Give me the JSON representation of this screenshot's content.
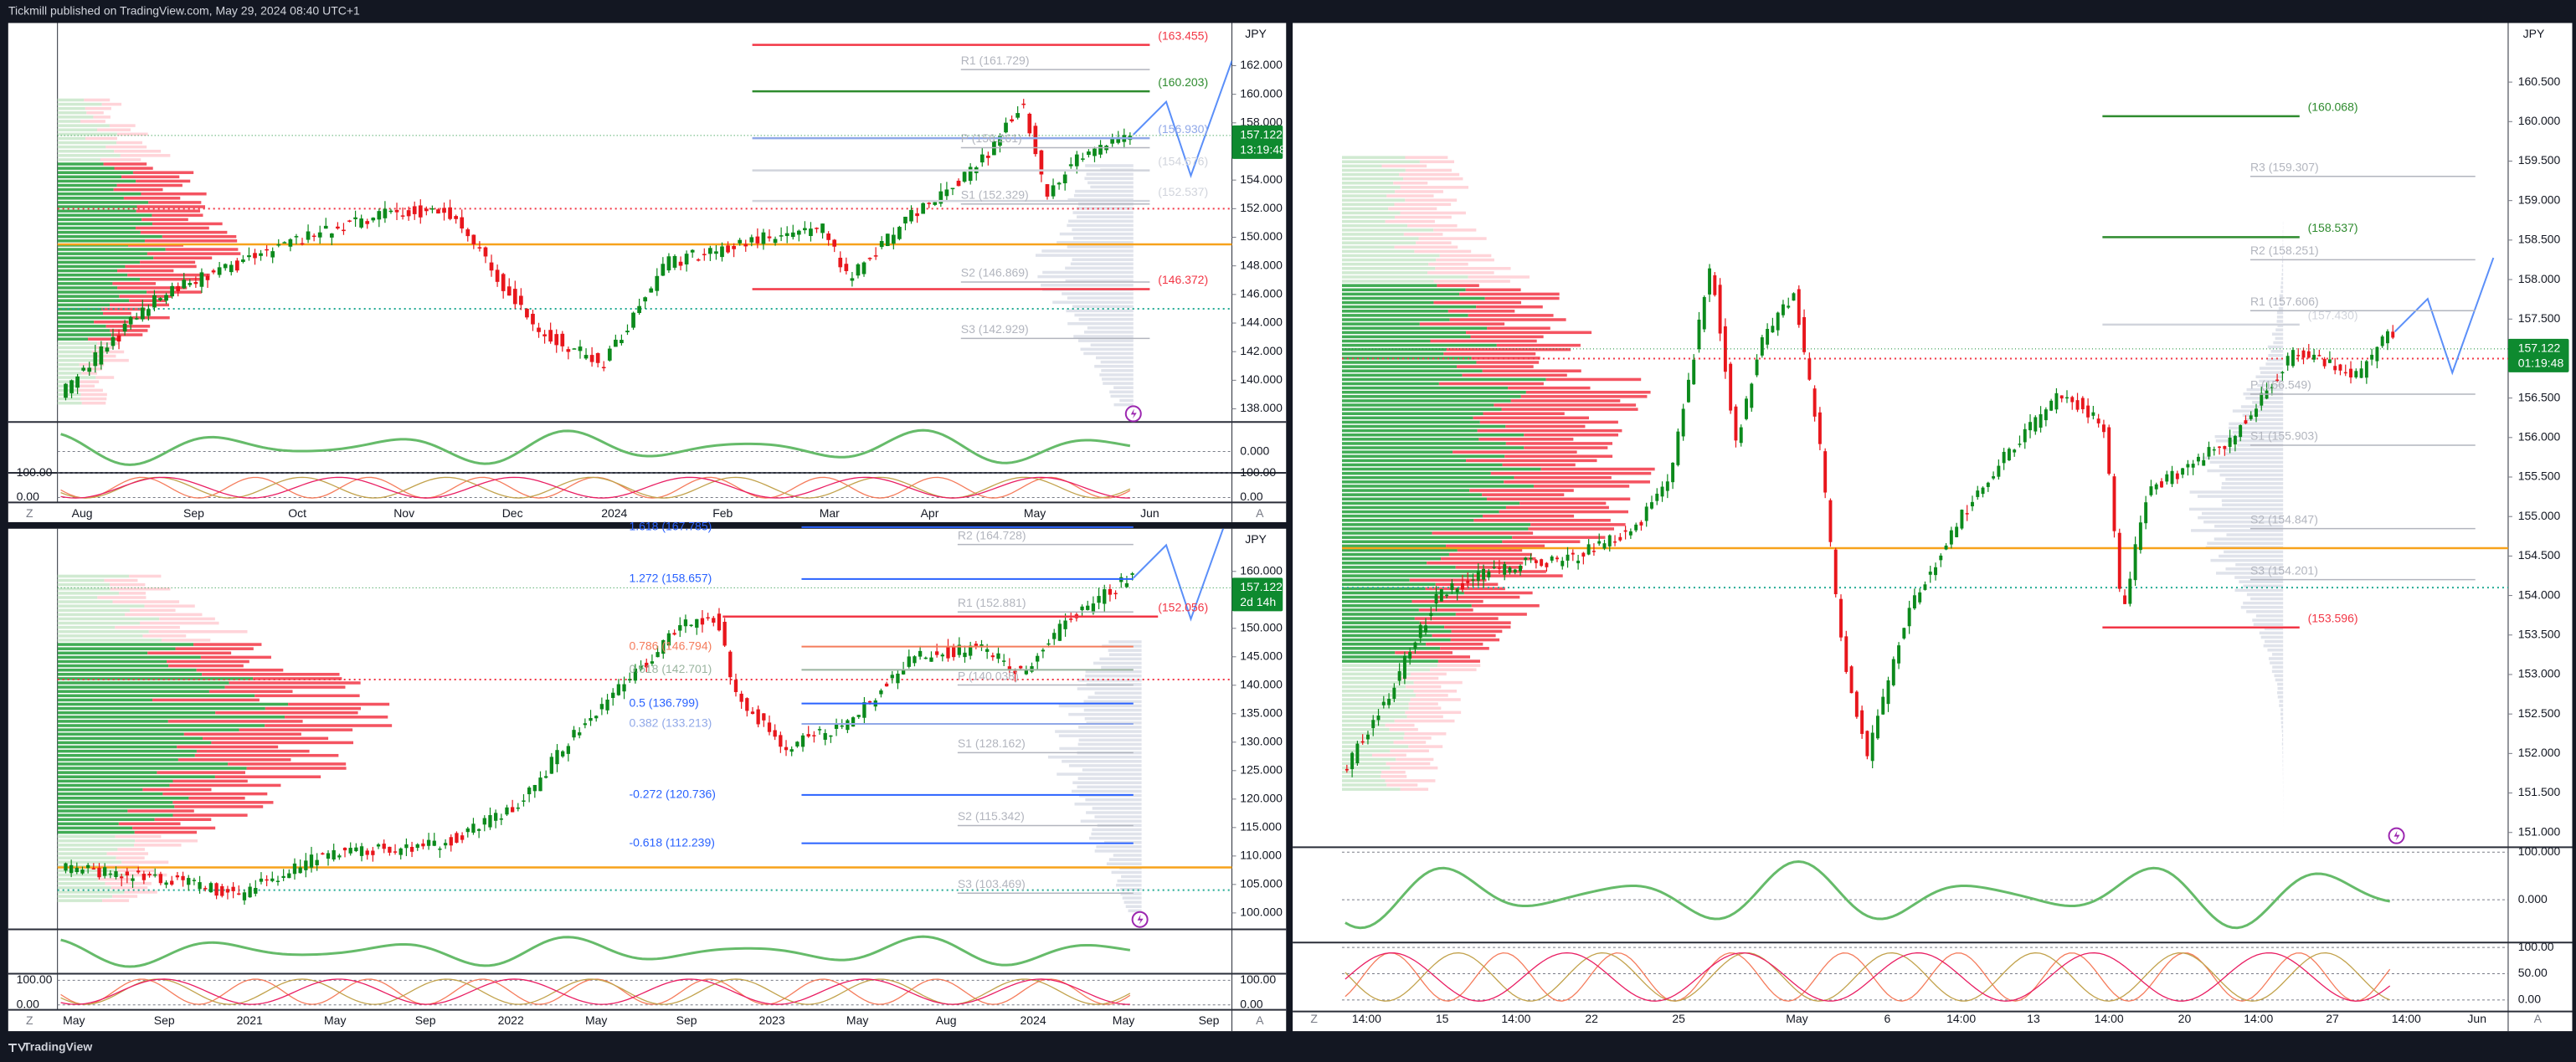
{
  "header": {
    "text": "Tickmill published on TradingView.com, May 29, 2024 08:40 UTC+1"
  },
  "footer": {
    "brand": "TradingView"
  },
  "panels": [
    {
      "currency": "JPY",
      "zoom_button": "Z",
      "auto_button": "A",
      "osc2_left_labels": true,
      "price_ticks": [
        {
          "value": 162,
          "label": "162.000"
        },
        {
          "value": 160,
          "label": "160.000"
        },
        {
          "value": 158,
          "label": "158.000"
        },
        {
          "value": 154,
          "label": "154.000"
        },
        {
          "value": 152,
          "label": "152.000"
        },
        {
          "value": 150,
          "label": "150.000"
        },
        {
          "value": 148,
          "label": "148.000"
        },
        {
          "value": 146,
          "label": "146.000"
        },
        {
          "value": 144,
          "label": "144.000"
        },
        {
          "value": 142,
          "label": "142.000"
        },
        {
          "value": 140,
          "label": "140.000"
        },
        {
          "value": 138,
          "label": "138.000"
        }
      ],
      "price_tag": {
        "value": 157.122,
        "label": "157.122",
        "countdown": "13:19:48"
      },
      "osc1_ticks": [
        {
          "value": 0,
          "label": "0.000"
        }
      ],
      "osc2_ticks": [
        {
          "value": 100,
          "label": "100.00"
        },
        {
          "value": 0,
          "label": "0.00"
        }
      ],
      "levels": [
        {
          "text": "(163.455)",
          "value": 163.455,
          "kind": "target",
          "color": "#f23645"
        },
        {
          "text": "R1 (161.729)",
          "value": 161.729,
          "kind": "pivot",
          "color": "#b2b5be"
        },
        {
          "text": "(160.203)",
          "value": 160.203,
          "kind": "target",
          "color": "#2e8b2e"
        },
        {
          "text": "(156.930)",
          "value": 156.93,
          "kind": "target",
          "color": "#90a8e8"
        },
        {
          "text": "P (156.261)",
          "value": 156.261,
          "kind": "pivot",
          "color": "#b2b5be"
        },
        {
          "text": "(154.676)",
          "value": 154.676,
          "kind": "target",
          "color": "#d1d4dc"
        },
        {
          "text": "(152.537)",
          "value": 152.537,
          "kind": "target",
          "color": "#d1d4dc"
        },
        {
          "text": "S1 (152.329)",
          "value": 152.329,
          "kind": "pivot",
          "color": "#b2b5be"
        },
        {
          "text": "S2 (146.869)",
          "value": 146.869,
          "kind": "pivot",
          "color": "#b2b5be"
        },
        {
          "text": "(146.372)",
          "value": 146.372,
          "kind": "target",
          "color": "#f23645"
        },
        {
          "text": "S3 (142.929)",
          "value": 142.929,
          "kind": "pivot",
          "color": "#b2b5be"
        }
      ],
      "time_labels": [
        "Aug",
        "Sep",
        "Oct",
        "Nov",
        "Dec",
        "2024",
        "Feb",
        "Mar",
        "Apr",
        "May",
        "Jun"
      ]
    },
    {
      "currency": "JPY",
      "zoom_button": "Z",
      "auto_button": "A",
      "osc2_left_labels": true,
      "price_ticks": [
        {
          "value": 160,
          "label": "160.000"
        },
        {
          "value": 150,
          "label": "150.000"
        },
        {
          "value": 145,
          "label": "145.000"
        },
        {
          "value": 140,
          "label": "140.000"
        },
        {
          "value": 135,
          "label": "135.000"
        },
        {
          "value": 130,
          "label": "130.000"
        },
        {
          "value": 125,
          "label": "125.000"
        },
        {
          "value": 120,
          "label": "120.000"
        },
        {
          "value": 115,
          "label": "115.000"
        },
        {
          "value": 110,
          "label": "110.000"
        },
        {
          "value": 105,
          "label": "105.000"
        },
        {
          "value": 100,
          "label": "100.000"
        }
      ],
      "price_tag": {
        "value": 157.122,
        "label": "157.122",
        "countdown": "2d 14h"
      },
      "osc1_ticks": [],
      "osc2_ticks": [
        {
          "value": 100,
          "label": "100.00"
        },
        {
          "value": 0,
          "label": "0.00"
        }
      ],
      "levels": [
        {
          "text": "1.618 (167.785)",
          "value": 167.785,
          "kind": "fib",
          "color": "#2962ff"
        },
        {
          "text": "R2 (164.728)",
          "value": 164.728,
          "kind": "pivot",
          "color": "#b2b5be"
        },
        {
          "text": "1.272 (158.657)",
          "value": 158.657,
          "kind": "fib",
          "color": "#2962ff"
        },
        {
          "text": "R1 (152.881)",
          "value": 152.881,
          "kind": "pivot",
          "color": "#b2b5be"
        },
        {
          "text": "(152.056)",
          "value": 152.056,
          "kind": "target",
          "color": "#f23645"
        },
        {
          "text": "0.786 (146.794)",
          "value": 146.794,
          "kind": "fib",
          "color": "#f57c5c"
        },
        {
          "text": "0.618 (142.701)",
          "value": 142.701,
          "kind": "fib",
          "color": "#9bb5a0"
        },
        {
          "text": "P (140.038)",
          "value": 140.038,
          "kind": "pivot",
          "color": "#b2b5be"
        },
        {
          "text": "0.5 (136.799)",
          "value": 136.799,
          "kind": "fib",
          "color": "#2962ff"
        },
        {
          "text": "0.382 (133.213)",
          "value": 133.213,
          "kind": "fib",
          "color": "#90a8e8"
        },
        {
          "text": "S1 (128.162)",
          "value": 128.162,
          "kind": "pivot",
          "color": "#b2b5be"
        },
        {
          "text": "-0.272 (120.736)",
          "value": 120.736,
          "kind": "fib",
          "color": "#2962ff"
        },
        {
          "text": "S2 (115.342)",
          "value": 115.342,
          "kind": "pivot",
          "color": "#b2b5be"
        },
        {
          "text": "-0.618 (112.239)",
          "value": 112.239,
          "kind": "fib",
          "color": "#2962ff"
        },
        {
          "text": "S3 (103.469)",
          "value": 103.469,
          "kind": "pivot",
          "color": "#b2b5be"
        }
      ],
      "time_labels": [
        "May",
        "Sep",
        "2021",
        "May",
        "Sep",
        "2022",
        "May",
        "Sep",
        "2023",
        "May",
        "Aug",
        "2024",
        "May",
        "Sep"
      ]
    },
    {
      "currency": "JPY",
      "zoom_button": "Z",
      "auto_button": "A",
      "osc2_left_labels": false,
      "price_ticks": [
        {
          "value": 160.5,
          "label": "160.500"
        },
        {
          "value": 160,
          "label": "160.000"
        },
        {
          "value": 159.5,
          "label": "159.500"
        },
        {
          "value": 159,
          "label": "159.000"
        },
        {
          "value": 158.5,
          "label": "158.500"
        },
        {
          "value": 158,
          "label": "158.000"
        },
        {
          "value": 157.5,
          "label": "157.500"
        },
        {
          "value": 156.5,
          "label": "156.500"
        },
        {
          "value": 156,
          "label": "156.000"
        },
        {
          "value": 155.5,
          "label": "155.500"
        },
        {
          "value": 155,
          "label": "155.000"
        },
        {
          "value": 154.5,
          "label": "154.500"
        },
        {
          "value": 154,
          "label": "154.000"
        },
        {
          "value": 153.5,
          "label": "153.500"
        },
        {
          "value": 153,
          "label": "153.000"
        },
        {
          "value": 152.5,
          "label": "152.500"
        },
        {
          "value": 152,
          "label": "152.000"
        },
        {
          "value": 151.5,
          "label": "151.500"
        },
        {
          "value": 151,
          "label": "151.000"
        }
      ],
      "price_tag": {
        "value": 157.122,
        "label": "157.122",
        "countdown": "01:19:48"
      },
      "osc1_ticks": [
        {
          "value": 100,
          "label": "100.000"
        },
        {
          "value": 0,
          "label": "0.000"
        }
      ],
      "osc2_ticks": [
        {
          "value": 100,
          "label": "100.00"
        },
        {
          "value": 50,
          "label": "50.00"
        },
        {
          "value": 0,
          "label": "0.00"
        }
      ],
      "levels": [
        {
          "text": "(160.068)",
          "value": 160.068,
          "kind": "target",
          "color": "#2e8b2e"
        },
        {
          "text": "R3 (159.307)",
          "value": 159.307,
          "kind": "pivot",
          "color": "#b2b5be"
        },
        {
          "text": "(158.537)",
          "value": 158.537,
          "kind": "target",
          "color": "#2e8b2e"
        },
        {
          "text": "R2 (158.251)",
          "value": 158.251,
          "kind": "pivot",
          "color": "#b2b5be"
        },
        {
          "text": "R1 (157.606)",
          "value": 157.606,
          "kind": "pivot",
          "color": "#b2b5be"
        },
        {
          "text": "(157.430)",
          "value": 157.43,
          "kind": "target",
          "color": "#d1d4dc"
        },
        {
          "text": "P (156.549)",
          "value": 156.549,
          "kind": "pivot",
          "color": "#b2b5be"
        },
        {
          "text": "S1 (155.903)",
          "value": 155.903,
          "kind": "pivot",
          "color": "#b2b5be"
        },
        {
          "text": "S2 (154.847)",
          "value": 154.847,
          "kind": "pivot",
          "color": "#b2b5be"
        },
        {
          "text": "S3 (154.201)",
          "value": 154.201,
          "kind": "pivot",
          "color": "#b2b5be"
        },
        {
          "text": "(153.596)",
          "value": 153.596,
          "kind": "target",
          "color": "#f23645"
        }
      ],
      "time_labels": [
        "14:00",
        "15",
        "14:00",
        "22",
        "25",
        "May",
        "6",
        "14:00",
        "13",
        "14:00",
        "20",
        "14:00",
        "27",
        "14:00",
        "Jun"
      ]
    }
  ]
}
